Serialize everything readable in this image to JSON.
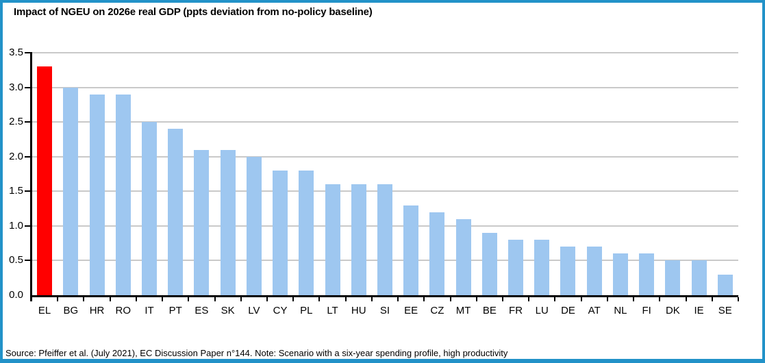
{
  "title": "Impact of NGEU on 2026e real GDP (ppts deviation from no-policy baseline)",
  "footer": "Source: Pfeiffer et al. (July 2021), EC Discussion Paper n°144. Note: Scenario with a six-year spending profile, high productivity",
  "frame": {
    "border_color": "#2292C8"
  },
  "chart_data": {
    "type": "bar",
    "title": "Impact of NGEU on 2026e real GDP (ppts deviation from no-policy baseline)",
    "categories": [
      "EL",
      "BG",
      "HR",
      "RO",
      "IT",
      "PT",
      "ES",
      "SK",
      "LV",
      "CY",
      "PL",
      "LT",
      "HU",
      "SI",
      "EE",
      "CZ",
      "MT",
      "BE",
      "FR",
      "LU",
      "DE",
      "AT",
      "NL",
      "FI",
      "DK",
      "IE",
      "SE"
    ],
    "values": [
      3.3,
      3.0,
      2.9,
      2.9,
      2.5,
      2.4,
      2.1,
      2.1,
      2.0,
      1.8,
      1.8,
      1.6,
      1.6,
      1.6,
      1.3,
      1.2,
      1.1,
      0.9,
      0.8,
      0.8,
      0.7,
      0.7,
      0.6,
      0.6,
      0.5,
      0.5,
      0.3
    ],
    "highlight_category": "EL",
    "highlight_color": "#FF0000",
    "bar_color": "#9EC7F0",
    "xlabel": "",
    "ylabel": "",
    "ylim": [
      0,
      3.5
    ],
    "ytick_step": 0.5,
    "yticks": [
      "0.0",
      "0.5",
      "1.0",
      "1.5",
      "2.0",
      "2.5",
      "3.0",
      "3.5"
    ],
    "grid": true,
    "gridline_color": "#C9C9C9",
    "axis_color": "#000000",
    "legend": "none"
  }
}
